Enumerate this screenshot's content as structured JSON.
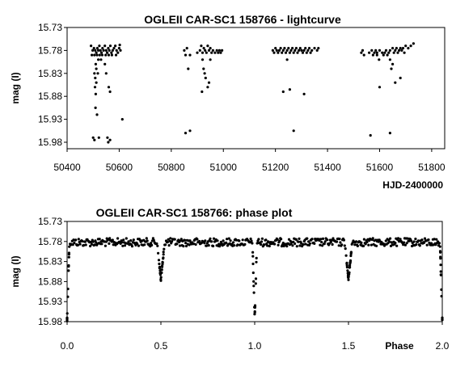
{
  "chart_data": [
    {
      "type": "scatter",
      "title": "OGLEII CAR-SC1 158766 - lightcurve",
      "xlabel": "HJD-2400000",
      "ylabel": "mag (I)",
      "xlim": [
        50400,
        51850
      ],
      "ylim": [
        15.73,
        16.0
      ],
      "y_inverted": true,
      "grid": false,
      "legend": "none",
      "marker_color": "#000000",
      "xticks": [
        50400,
        50600,
        50800,
        51000,
        51200,
        51400,
        51600,
        51800
      ],
      "xtick_labels": [
        "50400",
        "50600",
        "50800",
        "51000",
        "51200",
        "51400",
        "51600",
        "51800"
      ],
      "yticks": [
        15.73,
        15.78,
        15.83,
        15.88,
        15.93,
        15.98
      ],
      "ytick_labels": [
        "15.73",
        "15.78",
        "15.83",
        "15.88",
        "15.93",
        "15.98"
      ],
      "points": [
        [
          50492,
          15.77
        ],
        [
          50498,
          15.78
        ],
        [
          50503,
          15.775
        ],
        [
          50508,
          15.78
        ],
        [
          50512,
          15.785
        ],
        [
          50516,
          15.775
        ],
        [
          50520,
          15.78
        ],
        [
          50524,
          15.77
        ],
        [
          50528,
          15.78
        ],
        [
          50532,
          15.785
        ],
        [
          50536,
          15.775
        ],
        [
          50540,
          15.78
        ],
        [
          50545,
          15.77
        ],
        [
          50550,
          15.78
        ],
        [
          50554,
          15.785
        ],
        [
          50558,
          15.775
        ],
        [
          50562,
          15.78
        ],
        [
          50566,
          15.77
        ],
        [
          50570,
          15.785
        ],
        [
          50575,
          15.78
        ],
        [
          50580,
          15.775
        ],
        [
          50585,
          15.77
        ],
        [
          50590,
          15.78
        ],
        [
          50595,
          15.785
        ],
        [
          50600,
          15.775
        ],
        [
          50605,
          15.78
        ],
        [
          50495,
          15.79
        ],
        [
          50505,
          15.79
        ],
        [
          50515,
          15.79
        ],
        [
          50525,
          15.79
        ],
        [
          50535,
          15.79
        ],
        [
          50548,
          15.79
        ],
        [
          50560,
          15.79
        ],
        [
          50572,
          15.79
        ],
        [
          50588,
          15.79
        ],
        [
          50602,
          15.768
        ],
        [
          50510,
          15.81
        ],
        [
          50512,
          15.82
        ],
        [
          50505,
          15.83
        ],
        [
          50508,
          15.84
        ],
        [
          50512,
          15.85
        ],
        [
          50507,
          15.86
        ],
        [
          50510,
          15.875
        ],
        [
          50518,
          15.83
        ],
        [
          50520,
          15.8
        ],
        [
          50515,
          15.92
        ],
        [
          50509,
          15.905
        ],
        [
          50500,
          15.97
        ],
        [
          50505,
          15.975
        ],
        [
          50522,
          15.97
        ],
        [
          50550,
          15.83
        ],
        [
          50560,
          15.86
        ],
        [
          50565,
          15.87
        ],
        [
          50555,
          15.97
        ],
        [
          50558,
          15.98
        ],
        [
          50565,
          15.975
        ],
        [
          50545,
          15.81
        ],
        [
          50530,
          15.8
        ],
        [
          50612,
          15.93
        ],
        [
          50850,
          15.78
        ],
        [
          50855,
          15.79
        ],
        [
          50860,
          15.775
        ],
        [
          50872,
          15.79
        ],
        [
          50900,
          15.785
        ],
        [
          50910,
          15.78
        ],
        [
          50915,
          15.77
        ],
        [
          50920,
          15.785
        ],
        [
          50925,
          15.775
        ],
        [
          50930,
          15.78
        ],
        [
          50935,
          15.785
        ],
        [
          50940,
          15.77
        ],
        [
          50945,
          15.78
        ],
        [
          50950,
          15.775
        ],
        [
          50955,
          15.785
        ],
        [
          50960,
          15.78
        ],
        [
          50968,
          15.785
        ],
        [
          50975,
          15.78
        ],
        [
          50980,
          15.785
        ],
        [
          50985,
          15.78
        ],
        [
          50990,
          15.785
        ],
        [
          50995,
          15.78
        ],
        [
          50865,
          15.82
        ],
        [
          50920,
          15.8
        ],
        [
          50924,
          15.82
        ],
        [
          50928,
          15.83
        ],
        [
          50932,
          15.84
        ],
        [
          50940,
          15.86
        ],
        [
          50918,
          15.87
        ],
        [
          50945,
          15.85
        ],
        [
          50950,
          15.8
        ],
        [
          50855,
          15.96
        ],
        [
          50872,
          15.955
        ],
        [
          51190,
          15.78
        ],
        [
          51195,
          15.785
        ],
        [
          51200,
          15.775
        ],
        [
          51205,
          15.78
        ],
        [
          51210,
          15.785
        ],
        [
          51215,
          15.78
        ],
        [
          51220,
          15.775
        ],
        [
          51225,
          15.785
        ],
        [
          51230,
          15.78
        ],
        [
          51235,
          15.775
        ],
        [
          51240,
          15.785
        ],
        [
          51245,
          15.78
        ],
        [
          51250,
          15.775
        ],
        [
          51255,
          15.785
        ],
        [
          51260,
          15.78
        ],
        [
          51265,
          15.775
        ],
        [
          51270,
          15.785
        ],
        [
          51275,
          15.78
        ],
        [
          51280,
          15.775
        ],
        [
          51285,
          15.785
        ],
        [
          51290,
          15.78
        ],
        [
          51295,
          15.775
        ],
        [
          51300,
          15.78
        ],
        [
          51305,
          15.785
        ],
        [
          51310,
          15.78
        ],
        [
          51315,
          15.775
        ],
        [
          51320,
          15.785
        ],
        [
          51325,
          15.78
        ],
        [
          51330,
          15.775
        ],
        [
          51335,
          15.785
        ],
        [
          51340,
          15.78
        ],
        [
          51350,
          15.775
        ],
        [
          51360,
          15.78
        ],
        [
          51365,
          15.775
        ],
        [
          51230,
          15.87
        ],
        [
          51255,
          15.865
        ],
        [
          51310,
          15.875
        ],
        [
          51270,
          15.955
        ],
        [
          51245,
          15.8
        ],
        [
          51530,
          15.785
        ],
        [
          51535,
          15.78
        ],
        [
          51540,
          15.79
        ],
        [
          51560,
          15.785
        ],
        [
          51570,
          15.78
        ],
        [
          51575,
          15.79
        ],
        [
          51580,
          15.785
        ],
        [
          51585,
          15.78
        ],
        [
          51590,
          15.785
        ],
        [
          51600,
          15.78
        ],
        [
          51610,
          15.785
        ],
        [
          51615,
          15.79
        ],
        [
          51620,
          15.785
        ],
        [
          51625,
          15.78
        ],
        [
          51630,
          15.79
        ],
        [
          51635,
          15.785
        ],
        [
          51640,
          15.78
        ],
        [
          51650,
          15.775
        ],
        [
          51655,
          15.785
        ],
        [
          51660,
          15.78
        ],
        [
          51665,
          15.775
        ],
        [
          51670,
          15.785
        ],
        [
          51675,
          15.78
        ],
        [
          51680,
          15.775
        ],
        [
          51685,
          15.78
        ],
        [
          51690,
          15.775
        ],
        [
          51695,
          15.785
        ],
        [
          51700,
          15.77
        ],
        [
          51710,
          15.775
        ],
        [
          51720,
          15.77
        ],
        [
          51730,
          15.765
        ],
        [
          51590,
          15.79
        ],
        [
          51598,
          15.8
        ],
        [
          51640,
          15.8
        ],
        [
          51645,
          15.82
        ],
        [
          51650,
          15.81
        ],
        [
          51660,
          15.85
        ],
        [
          51680,
          15.84
        ],
        [
          51600,
          15.86
        ],
        [
          51565,
          15.965
        ],
        [
          51640,
          15.96
        ]
      ]
    },
    {
      "type": "scatter",
      "title": "OGLEII CAR-SC1 158766: phase plot",
      "xlabel": "Phase",
      "ylabel": "mag (I)",
      "xlim": [
        0.0,
        2.0
      ],
      "ylim": [
        15.73,
        16.0
      ],
      "y_inverted": true,
      "grid": false,
      "legend": "none",
      "marker_color": "#000000",
      "xticks": [
        0.0,
        0.5,
        1.0,
        1.5,
        2.0
      ],
      "xtick_labels": [
        "0.0",
        "0.5",
        "1.0",
        "1.5",
        "2.0"
      ],
      "yticks": [
        15.73,
        15.78,
        15.83,
        15.88,
        15.93,
        15.98
      ],
      "ytick_labels": [
        "15.73",
        "15.78",
        "15.83",
        "15.88",
        "15.93",
        "15.98"
      ],
      "features": {
        "baseline_mag": 15.782,
        "baseline_scatter": 0.01,
        "primary_eclipse_depth_mag": 15.975,
        "secondary_eclipse_depth_mag": 15.875,
        "primary_eclipse_phases": [
          0.0,
          1.0,
          2.0
        ],
        "secondary_eclipse_phases": [
          0.5,
          1.5
        ]
      }
    }
  ]
}
